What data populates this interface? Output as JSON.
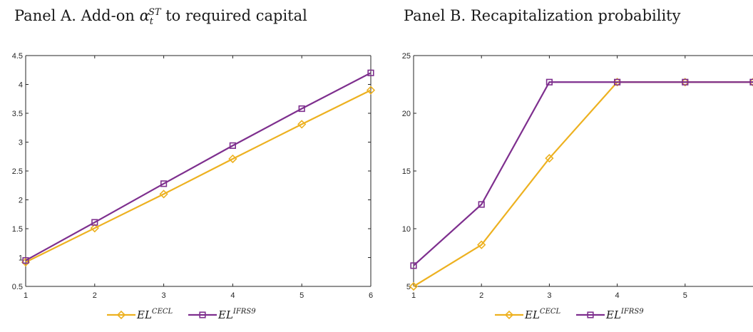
{
  "panels": {
    "a": {
      "title_prefix": "Panel A. Add-on ",
      "title_symbol": "α",
      "title_sub": "t",
      "title_sup": "ST",
      "title_suffix": " to required capital"
    },
    "b": {
      "title": "Panel B. Recapitalization probability"
    }
  },
  "colors": {
    "cecl": "#EDB120",
    "ifrs9": "#7E2F8E",
    "axis": "#262626"
  },
  "chart_data": [
    {
      "type": "line",
      "title": "Panel A. Add-on α_t^ST to required capital",
      "xlabel": "",
      "ylabel": "",
      "x": [
        1,
        2,
        3,
        4,
        5,
        6
      ],
      "xlim": [
        1,
        6
      ],
      "ylim": [
        0.5,
        4.5
      ],
      "xticks": [
        1,
        2,
        3,
        4,
        5,
        6
      ],
      "yticks": [
        0.5,
        1,
        1.5,
        2,
        2.5,
        3,
        3.5,
        4,
        4.5
      ],
      "grid": false,
      "legend": "bottom-center",
      "series": [
        {
          "name": "EL^CECL",
          "label_base": "EL",
          "label_sup": "CECL",
          "color": "#EDB120",
          "marker": "diamond",
          "values": [
            0.92,
            1.51,
            2.1,
            2.71,
            3.31,
            3.9
          ]
        },
        {
          "name": "EL^IFRS9",
          "label_base": "EL",
          "label_sup": "IFRS9",
          "color": "#7E2F8E",
          "marker": "square",
          "values": [
            0.95,
            1.61,
            2.28,
            2.94,
            3.58,
            4.2
          ]
        }
      ]
    },
    {
      "type": "line",
      "title": "Panel B. Recapitalization probability",
      "xlabel": "",
      "ylabel": "",
      "x": [
        1,
        2,
        3,
        4,
        5,
        6
      ],
      "xlim": [
        1,
        6
      ],
      "ylim": [
        5,
        25
      ],
      "xticks": [
        1,
        2,
        3,
        4,
        5
      ],
      "yticks": [
        5,
        10,
        15,
        20,
        25
      ],
      "grid": false,
      "legend": "bottom-center",
      "series": [
        {
          "name": "EL^CECL",
          "label_base": "EL",
          "label_sup": "CECL",
          "color": "#EDB120",
          "marker": "diamond",
          "values": [
            5.0,
            8.6,
            16.1,
            22.7,
            22.7,
            22.7
          ]
        },
        {
          "name": "EL^IFRS9",
          "label_base": "EL",
          "label_sup": "IFRS9",
          "color": "#7E2F8E",
          "marker": "square",
          "values": [
            6.8,
            12.1,
            22.7,
            22.7,
            22.7,
            22.7
          ]
        }
      ]
    }
  ]
}
